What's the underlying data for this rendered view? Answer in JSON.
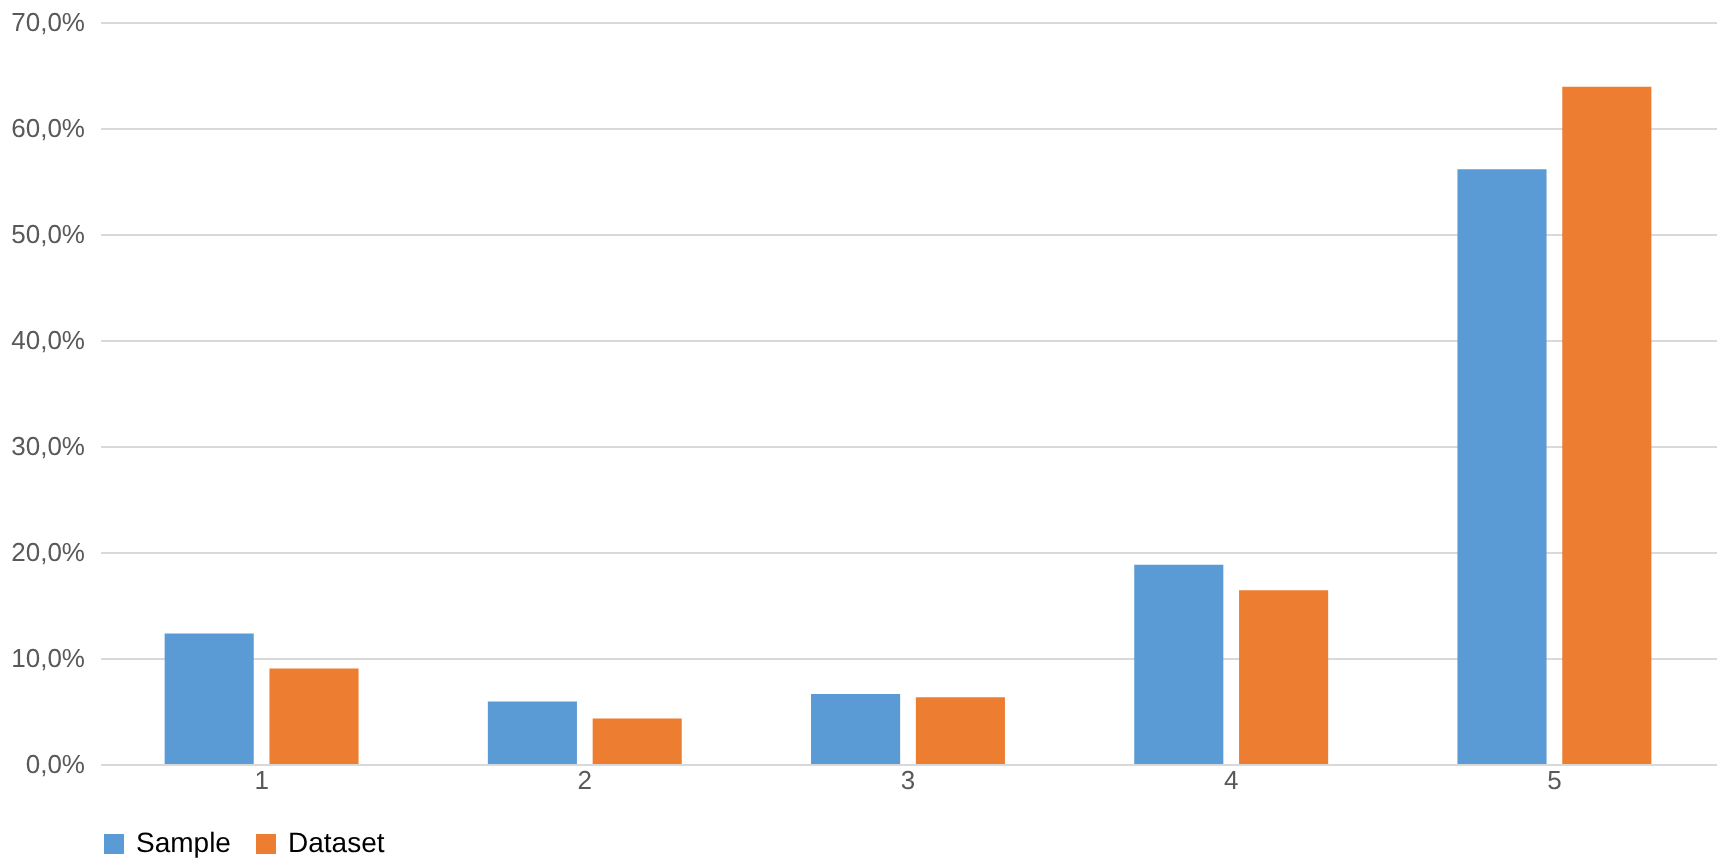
{
  "chart_data": {
    "type": "bar",
    "categories": [
      "1",
      "2",
      "3",
      "4",
      "5"
    ],
    "series": [
      {
        "name": "Sample",
        "color": "#5b9bd5",
        "values": [
          12.3,
          5.9,
          6.6,
          18.8,
          56.1
        ]
      },
      {
        "name": "Dataset",
        "color": "#ed7d31",
        "values": [
          9.0,
          4.3,
          6.3,
          16.4,
          63.9
        ]
      }
    ],
    "ylim": [
      0,
      70
    ],
    "yticks": [
      {
        "value": 0,
        "label": "0,0%"
      },
      {
        "value": 10,
        "label": "10,0%"
      },
      {
        "value": 20,
        "label": "20,0%"
      },
      {
        "value": 30,
        "label": "30,0%"
      },
      {
        "value": 40,
        "label": "40,0%"
      },
      {
        "value": 50,
        "label": "50,0%"
      },
      {
        "value": 60,
        "label": "60,0%"
      },
      {
        "value": 70,
        "label": "70,0%"
      }
    ],
    "grid": "y",
    "legend": "bottom"
  }
}
